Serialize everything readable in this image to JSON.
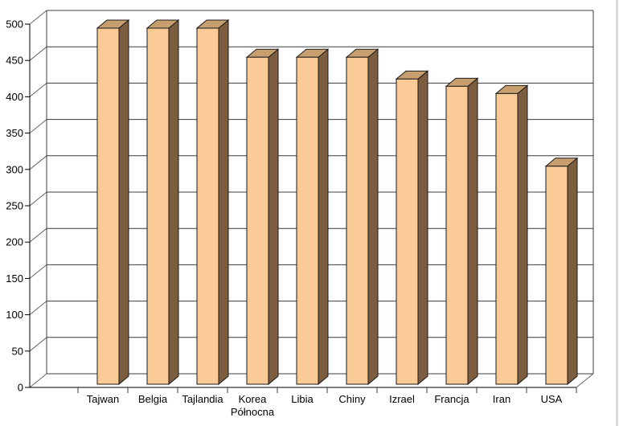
{
  "chart_data": {
    "type": "bar",
    "variant": "3d-column",
    "title": "",
    "xlabel": "",
    "ylabel": "",
    "categories": [
      "Tajwan",
      "Belgia",
      "Tajlandia",
      "Korea Północna",
      "Libia",
      "Chiny",
      "Izrael",
      "Francja",
      "Iran",
      "USA"
    ],
    "values": [
      490,
      490,
      490,
      450,
      450,
      450,
      420,
      410,
      400,
      300
    ],
    "ylim": [
      0,
      500
    ],
    "ytick_step": 50,
    "ytick_labels": [
      "0",
      "50",
      "100",
      "150",
      "200",
      "250",
      "300",
      "350",
      "400",
      "450",
      "500"
    ],
    "grid": true,
    "legend": false,
    "colors": {
      "background": "#FFFFFF",
      "bar_front": "#FBCB97",
      "bar_top": "#C79E6E",
      "bar_side": "#7C5D3F",
      "outline": "#1A1A1A",
      "gridline": "#3C3C3C",
      "connector": "#666666",
      "axis": "#000000",
      "text": "#000000",
      "window_edge": "#C9C9C9"
    }
  }
}
